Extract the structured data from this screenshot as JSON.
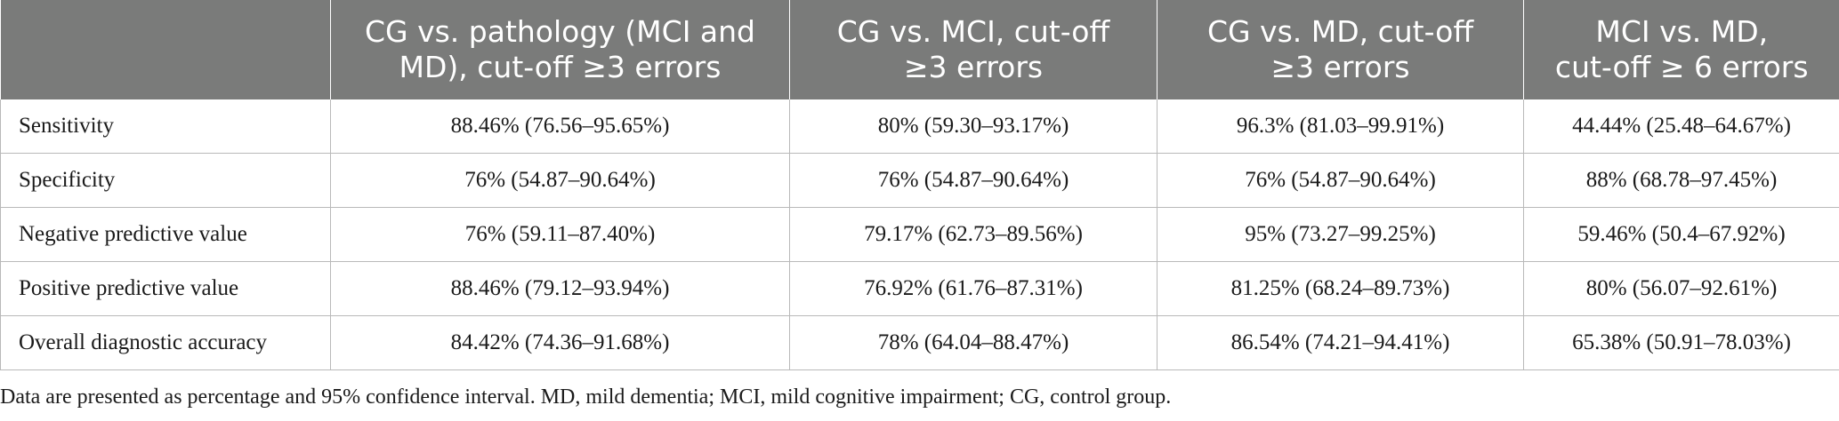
{
  "table": {
    "headers": [
      "",
      "CG vs. pathology (MCI and MD), cut-off ≥3 errors",
      "CG vs. MCI, cut-off ≥3 errors",
      "CG vs. MD, cut-off ≥3 errors",
      "MCI vs. MD, cut-off ≥ 6 errors"
    ],
    "header_lines": [
      [
        ""
      ],
      [
        "CG vs. pathology (MCI and",
        "MD), cut-off ≥3 errors"
      ],
      [
        "CG vs. MCI, cut-off",
        "≥3 errors"
      ],
      [
        "CG vs. MD, cut-off",
        "≥3 errors"
      ],
      [
        "MCI vs. MD,",
        "cut-off ≥ 6 errors"
      ]
    ],
    "rows": [
      {
        "label": "Sensitivity",
        "cells": [
          "88.46% (76.56–95.65%)",
          "80% (59.30–93.17%)",
          "96.3% (81.03–99.91%)",
          "44.44% (25.48–64.67%)"
        ]
      },
      {
        "label": "Specificity",
        "cells": [
          "76% (54.87–90.64%)",
          "76% (54.87–90.64%)",
          "76% (54.87–90.64%)",
          "88% (68.78–97.45%)"
        ]
      },
      {
        "label": "Negative predictive value",
        "cells": [
          "76% (59.11–87.40%)",
          "79.17% (62.73–89.56%)",
          "95% (73.27–99.25%)",
          "59.46% (50.4–67.92%)"
        ]
      },
      {
        "label": "Positive predictive value",
        "cells": [
          "88.46% (79.12–93.94%)",
          "76.92% (61.76–87.31%)",
          "81.25% (68.24–89.73%)",
          "80% (56.07–92.61%)"
        ]
      },
      {
        "label": "Overall diagnostic accuracy",
        "cells": [
          "84.42% (74.36–91.68%)",
          "78% (64.04–88.47%)",
          "86.54% (74.21–94.41%)",
          "65.38% (50.91–78.03%)"
        ]
      }
    ]
  },
  "footnote": "Data are presented as percentage and 95% confidence interval. MD, mild dementia; MCI, mild cognitive impairment; CG, control group.",
  "colors": {
    "header_bg": "#7a7b7a",
    "header_text": "#ffffff",
    "grid": "#b9b9b9",
    "body_text": "#1a1a1a"
  }
}
